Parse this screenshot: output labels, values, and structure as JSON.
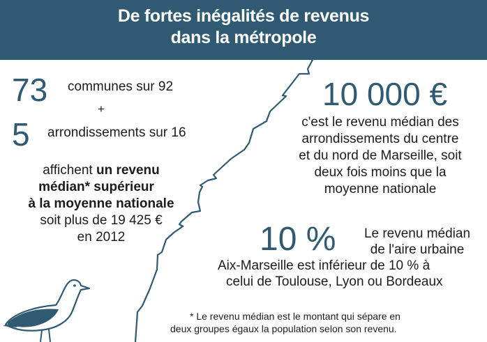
{
  "header": {
    "title_line1": "De fortes inégalités de revenus",
    "title_line2": "dans la métropole"
  },
  "left": {
    "communes_number": "73",
    "communes_text": "communes sur 92",
    "plus": "+",
    "arr_number": "5",
    "arr_text": "arrondissements sur 16",
    "line1_plain": "affichent ",
    "line1_bold": "un revenu",
    "line2_bold": "médian* supérieur",
    "line3_bold": "à la moyenne nationale",
    "line4": "soit plus de 19 425 €",
    "line5": "en 2012"
  },
  "right_top": {
    "amount": "10 000 €",
    "line1": "c'est le revenu médian des",
    "line2": "arrondissements du centre",
    "line3": "et du nord de Marseille, soit",
    "line4": "deux fois moins que la",
    "line5": "moyenne nationale"
  },
  "right_bottom": {
    "percent": "10 %",
    "line1": "Le revenu médian",
    "line2": "de l'aire urbaine",
    "line3": "Aix-Marseille  est inférieur de 10 %  à",
    "line4": "celui de Toulouse, Lyon ou Bordeaux"
  },
  "footnote": {
    "line1": "* Le revenu médian est le montant qui sépare en",
    "line2": "deux groupes égaux la population selon son revenu."
  },
  "colors": {
    "header_bg": "#2f5a72",
    "accent": "#2f5a72",
    "crack": "#2f5a72"
  },
  "icons": {
    "divider": "crack-line-icon",
    "bird": "seagull-icon"
  }
}
